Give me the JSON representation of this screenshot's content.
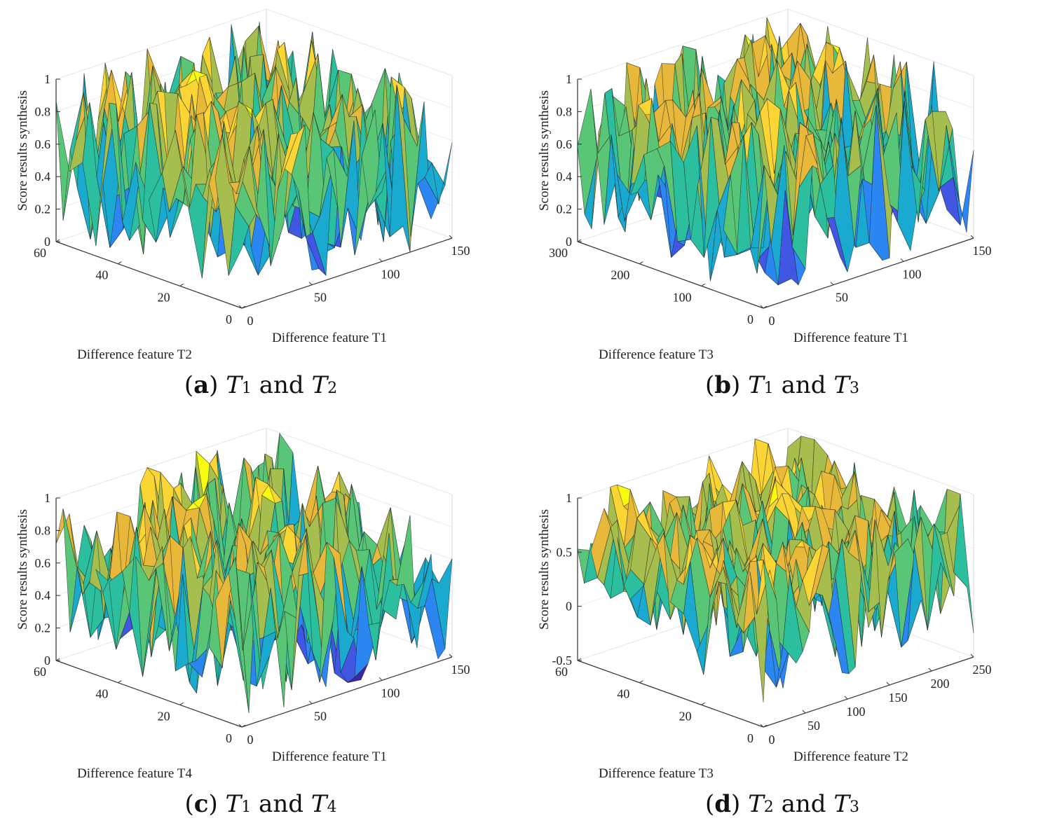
{
  "chart_data": [
    {
      "type": "surface3d",
      "panel_letter": "a",
      "caption_vars": [
        "T",
        "1",
        "and",
        "T",
        "2"
      ],
      "zlabel": "Score results synthesis",
      "xlabel": "Difference feature T1",
      "ylabel": "Difference feature T2",
      "zticks": [
        "0",
        "0.2",
        "0.4",
        "0.6",
        "0.8",
        "1"
      ],
      "xticks": [
        "0",
        "50",
        "100",
        "150"
      ],
      "yticks": [
        "0",
        "20",
        "40",
        "60"
      ],
      "xlim": [
        0,
        150
      ],
      "ylim": [
        0,
        60
      ],
      "zlim": [
        0,
        1
      ],
      "nx": 30,
      "ny": 14,
      "seed": 11,
      "min": 0.0,
      "max": 1.0
    },
    {
      "type": "surface3d",
      "panel_letter": "b",
      "caption_vars": [
        "T",
        "1",
        "and",
        "T",
        "3"
      ],
      "zlabel": "Score results synthesis",
      "xlabel": "Difference feature T1",
      "ylabel": "Difference feature T3",
      "zticks": [
        "0",
        "0.2",
        "0.4",
        "0.6",
        "0.8",
        "1"
      ],
      "xticks": [
        "0",
        "50",
        "100",
        "150"
      ],
      "yticks": [
        "0",
        "100",
        "200",
        "300"
      ],
      "xlim": [
        0,
        150
      ],
      "ylim": [
        0,
        300
      ],
      "zlim": [
        0,
        1
      ],
      "nx": 30,
      "ny": 14,
      "seed": 23,
      "min": 0.05,
      "max": 1.0
    },
    {
      "type": "surface3d",
      "panel_letter": "c",
      "caption_vars": [
        "T",
        "1",
        "and",
        "T",
        "4"
      ],
      "zlabel": "Score results synthesis",
      "xlabel": "Difference feature T1",
      "ylabel": "Difference feature T4",
      "zticks": [
        "0",
        "0.2",
        "0.4",
        "0.6",
        "0.8",
        "1"
      ],
      "xticks": [
        "0",
        "50",
        "100",
        "150"
      ],
      "yticks": [
        "0",
        "20",
        "40",
        "60"
      ],
      "xlim": [
        0,
        150
      ],
      "ylim": [
        0,
        60
      ],
      "zlim": [
        0,
        1
      ],
      "nx": 30,
      "ny": 14,
      "seed": 37,
      "min": 0.0,
      "max": 1.0
    },
    {
      "type": "surface3d",
      "panel_letter": "d",
      "caption_vars": [
        "T",
        "2",
        "and",
        "T",
        "3"
      ],
      "zlabel": "Score results synthesis",
      "xlabel": "Difference feature T2",
      "ylabel": "Difference feature T3",
      "zticks": [
        "-0.5",
        "0",
        "0.5",
        "1"
      ],
      "xticks": [
        "0",
        "50",
        "100",
        "150",
        "200",
        "250"
      ],
      "yticks": [
        "0",
        "20",
        "40",
        "60"
      ],
      "xlim": [
        0,
        250
      ],
      "ylim": [
        0,
        60
      ],
      "zlim": [
        -0.5,
        1
      ],
      "nx": 32,
      "ny": 14,
      "seed": 53,
      "min": -0.3,
      "max": 1.0
    }
  ]
}
